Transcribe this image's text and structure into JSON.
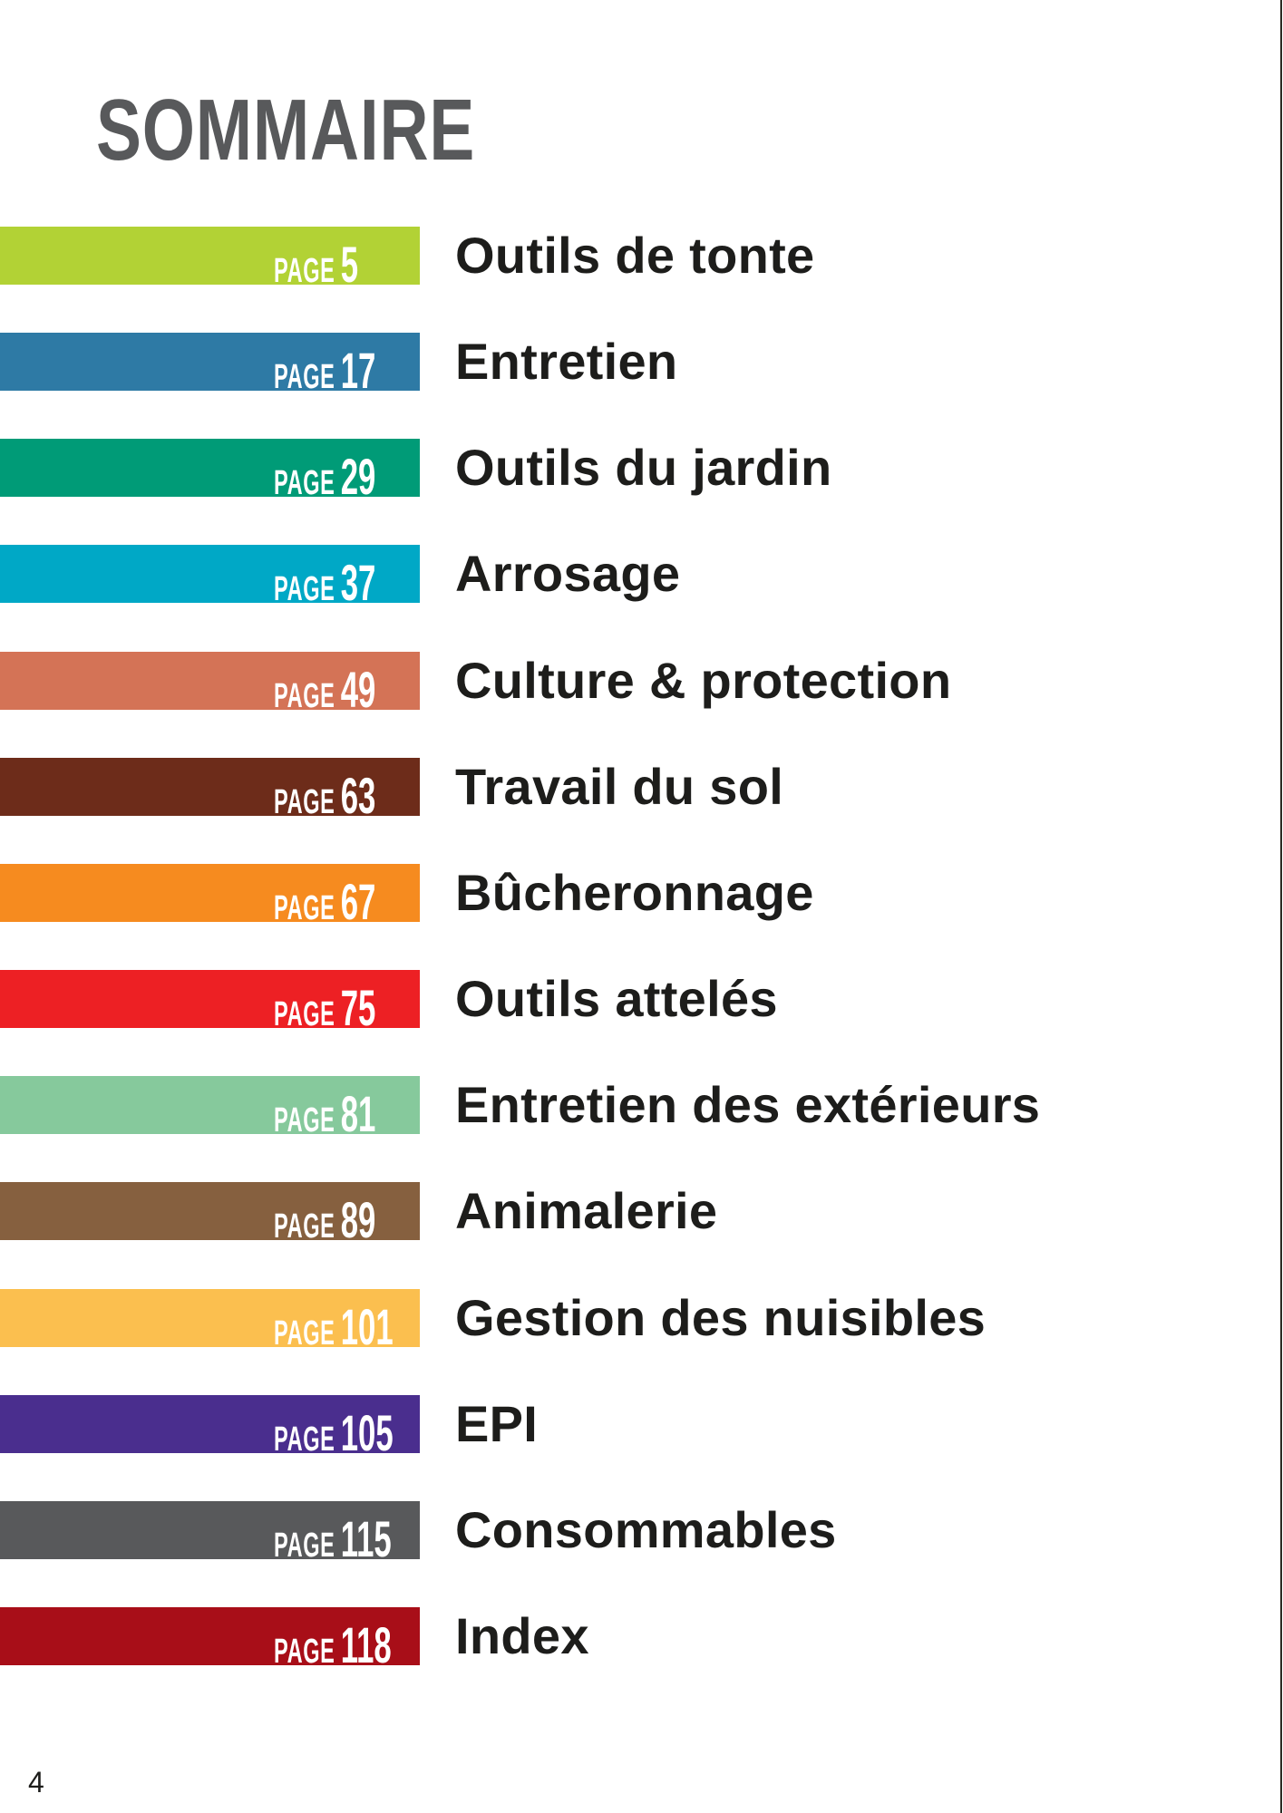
{
  "title": "SOMMAIRE",
  "page_prefix": "PAGE",
  "folio": "4",
  "entries": [
    {
      "label": "Outils de tonte",
      "page": "5",
      "color": "#b2d235"
    },
    {
      "label": "Entretien",
      "page": "17",
      "color": "#2e7aa5"
    },
    {
      "label": "Outils du jardin",
      "page": "29",
      "color": "#009b77"
    },
    {
      "label": "Arrosage",
      "page": "37",
      "color": "#00a8c6"
    },
    {
      "label": "Culture & protection",
      "page": "49",
      "color": "#d47356"
    },
    {
      "label": "Travail du sol",
      "page": "63",
      "color": "#6d2c1a"
    },
    {
      "label": "Bûcheronnage",
      "page": "67",
      "color": "#f68b1f"
    },
    {
      "label": "Outils attelés",
      "page": "75",
      "color": "#ed2024"
    },
    {
      "label": "Entretien des extérieurs",
      "page": "81",
      "color": "#86c99c"
    },
    {
      "label": "Animalerie",
      "page": "89",
      "color": "#86603f"
    },
    {
      "label": "Gestion des nuisibles",
      "page": "101",
      "color": "#fbbf4f"
    },
    {
      "label": "EPI",
      "page": "105",
      "color": "#4a2e8e"
    },
    {
      "label": "Consommables",
      "page": "115",
      "color": "#58595b"
    },
    {
      "label": "Index",
      "page": "118",
      "color": "#a80e18"
    }
  ]
}
